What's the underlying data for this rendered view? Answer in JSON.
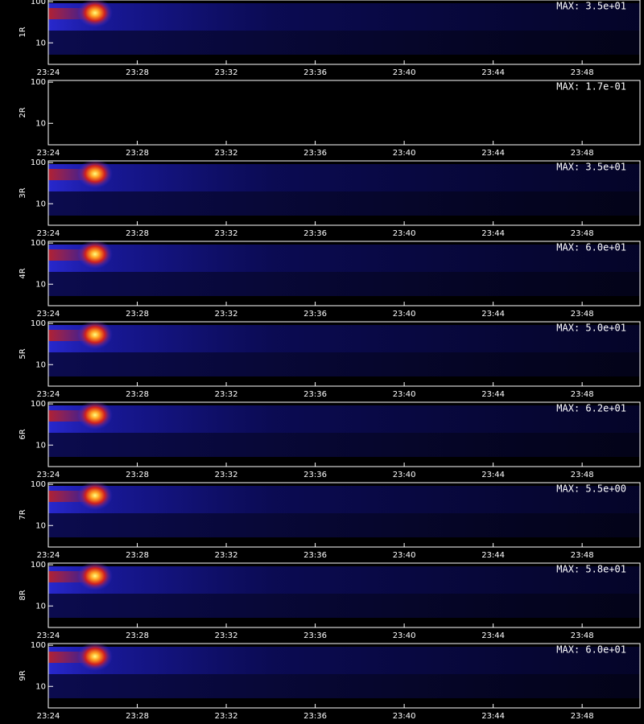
{
  "chart_data": [
    {
      "type": "heatmap",
      "ylabel": "1R",
      "annotation": "MAX: 3.5e+01",
      "log_y": true,
      "ylim": [
        3,
        110
      ],
      "yticks": [
        10,
        100
      ],
      "xlim": [
        1404,
        1430.6
      ],
      "xticks": [
        {
          "value": 1404,
          "label": "23:24"
        },
        {
          "value": 1408,
          "label": "23:28"
        },
        {
          "value": 1412,
          "label": "23:32"
        },
        {
          "value": 1416,
          "label": "23:36"
        },
        {
          "value": 1420,
          "label": "23:40"
        },
        {
          "value": 1424,
          "label": "23:44"
        },
        {
          "value": 1428,
          "label": "23:48"
        }
      ]
    },
    {
      "type": "heatmap",
      "ylabel": "2R",
      "annotation": "MAX: 1.7e-01",
      "log_y": true,
      "ylim": [
        3,
        110
      ],
      "yticks": [
        10,
        100
      ],
      "xlim": [
        1404,
        1430.6
      ],
      "xticks": [
        {
          "value": 1404,
          "label": "23:24"
        },
        {
          "value": 1408,
          "label": "23:28"
        },
        {
          "value": 1412,
          "label": "23:32"
        },
        {
          "value": 1416,
          "label": "23:36"
        },
        {
          "value": 1420,
          "label": "23:40"
        },
        {
          "value": 1424,
          "label": "23:44"
        },
        {
          "value": 1428,
          "label": "23:48"
        }
      ]
    },
    {
      "type": "heatmap",
      "ylabel": "3R",
      "annotation": "MAX: 3.5e+01",
      "log_y": true,
      "ylim": [
        3,
        110
      ],
      "yticks": [
        10,
        100
      ],
      "xlim": [
        1404,
        1430.6
      ],
      "xticks": [
        {
          "value": 1404,
          "label": "23:24"
        },
        {
          "value": 1408,
          "label": "23:28"
        },
        {
          "value": 1412,
          "label": "23:32"
        },
        {
          "value": 1416,
          "label": "23:36"
        },
        {
          "value": 1420,
          "label": "23:40"
        },
        {
          "value": 1424,
          "label": "23:44"
        },
        {
          "value": 1428,
          "label": "23:48"
        }
      ]
    },
    {
      "type": "heatmap",
      "ylabel": "4R",
      "annotation": "MAX: 6.0e+01",
      "log_y": true,
      "ylim": [
        3,
        110
      ],
      "yticks": [
        10,
        100
      ],
      "xlim": [
        1404,
        1430.6
      ],
      "xticks": [
        {
          "value": 1404,
          "label": "23:24"
        },
        {
          "value": 1408,
          "label": "23:28"
        },
        {
          "value": 1412,
          "label": "23:32"
        },
        {
          "value": 1416,
          "label": "23:36"
        },
        {
          "value": 1420,
          "label": "23:40"
        },
        {
          "value": 1424,
          "label": "23:44"
        },
        {
          "value": 1428,
          "label": "23:48"
        }
      ]
    },
    {
      "type": "heatmap",
      "ylabel": "5R",
      "annotation": "MAX: 5.0e+01",
      "log_y": true,
      "ylim": [
        3,
        110
      ],
      "yticks": [
        10,
        100
      ],
      "xlim": [
        1404,
        1430.6
      ],
      "xticks": [
        {
          "value": 1404,
          "label": "23:24"
        },
        {
          "value": 1408,
          "label": "23:28"
        },
        {
          "value": 1412,
          "label": "23:32"
        },
        {
          "value": 1416,
          "label": "23:36"
        },
        {
          "value": 1420,
          "label": "23:40"
        },
        {
          "value": 1424,
          "label": "23:44"
        },
        {
          "value": 1428,
          "label": "23:48"
        }
      ]
    },
    {
      "type": "heatmap",
      "ylabel": "6R",
      "annotation": "MAX: 6.2e+01",
      "log_y": true,
      "ylim": [
        3,
        110
      ],
      "yticks": [
        10,
        100
      ],
      "xlim": [
        1404,
        1430.6
      ],
      "xticks": [
        {
          "value": 1404,
          "label": "23:24"
        },
        {
          "value": 1408,
          "label": "23:28"
        },
        {
          "value": 1412,
          "label": "23:32"
        },
        {
          "value": 1416,
          "label": "23:36"
        },
        {
          "value": 1420,
          "label": "23:40"
        },
        {
          "value": 1424,
          "label": "23:44"
        },
        {
          "value": 1428,
          "label": "23:48"
        }
      ]
    },
    {
      "type": "heatmap",
      "ylabel": "7R",
      "annotation": "MAX: 5.5e+00",
      "log_y": true,
      "ylim": [
        3,
        110
      ],
      "yticks": [
        10,
        100
      ],
      "xlim": [
        1404,
        1430.6
      ],
      "xticks": [
        {
          "value": 1404,
          "label": "23:24"
        },
        {
          "value": 1408,
          "label": "23:28"
        },
        {
          "value": 1412,
          "label": "23:32"
        },
        {
          "value": 1416,
          "label": "23:36"
        },
        {
          "value": 1420,
          "label": "23:40"
        },
        {
          "value": 1424,
          "label": "23:44"
        },
        {
          "value": 1428,
          "label": "23:48"
        }
      ]
    },
    {
      "type": "heatmap",
      "ylabel": "8R",
      "annotation": "MAX: 5.8e+01",
      "log_y": true,
      "ylim": [
        3,
        110
      ],
      "yticks": [
        10,
        100
      ],
      "xlim": [
        1404,
        1430.6
      ],
      "xticks": [
        {
          "value": 1404,
          "label": "23:24"
        },
        {
          "value": 1408,
          "label": "23:28"
        },
        {
          "value": 1412,
          "label": "23:32"
        },
        {
          "value": 1416,
          "label": "23:36"
        },
        {
          "value": 1420,
          "label": "23:40"
        },
        {
          "value": 1424,
          "label": "23:44"
        },
        {
          "value": 1428,
          "label": "23:48"
        }
      ]
    },
    {
      "type": "heatmap",
      "ylabel": "9R",
      "annotation": "MAX: 6.0e+01",
      "log_y": true,
      "ylim": [
        3,
        110
      ],
      "yticks": [
        10,
        100
      ],
      "xlim": [
        1404,
        1430.6
      ],
      "xticks": [
        {
          "value": 1404,
          "label": "23:24"
        },
        {
          "value": 1408,
          "label": "23:28"
        },
        {
          "value": 1412,
          "label": "23:32"
        },
        {
          "value": 1416,
          "label": "23:36"
        },
        {
          "value": 1420,
          "label": "23:40"
        },
        {
          "value": 1424,
          "label": "23:44"
        },
        {
          "value": 1428,
          "label": "23:48"
        }
      ]
    }
  ]
}
